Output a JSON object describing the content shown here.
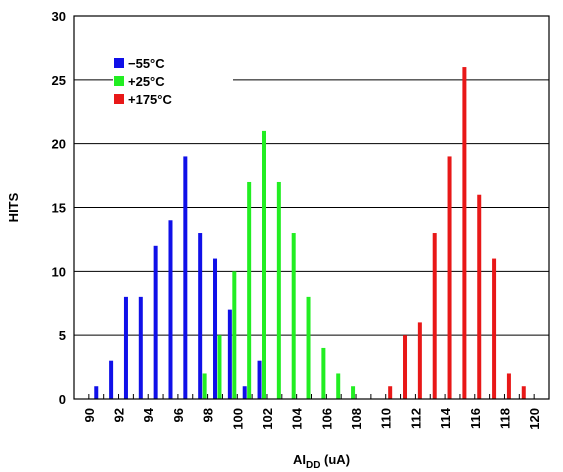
{
  "chart_data": {
    "type": "bar",
    "title": "",
    "ylabel": "HITS",
    "xlabel_main": "AI",
    "xlabel_sub": "DD",
    "xlabel_unit": " (uA)",
    "xlim": [
      89,
      121
    ],
    "ylim": [
      0,
      30
    ],
    "grid": true,
    "legend_position": "top-left",
    "x_ticks": [
      "90",
      "92",
      "94",
      "96",
      "98",
      "100",
      "102",
      "104",
      "106",
      "108",
      "110",
      "112",
      "114",
      "116",
      "118",
      "120"
    ],
    "y_ticks": [
      "0",
      "5",
      "10",
      "15",
      "20",
      "25",
      "30"
    ],
    "series": [
      {
        "name": "−55°C",
        "color": "#1010e8",
        "points": [
          {
            "x": 90.5,
            "y": 1
          },
          {
            "x": 91.5,
            "y": 3
          },
          {
            "x": 92.5,
            "y": 8
          },
          {
            "x": 93.5,
            "y": 8
          },
          {
            "x": 94.5,
            "y": 12
          },
          {
            "x": 95.5,
            "y": 14
          },
          {
            "x": 96.5,
            "y": 19
          },
          {
            "x": 97.5,
            "y": 13
          },
          {
            "x": 98.5,
            "y": 11
          },
          {
            "x": 99.5,
            "y": 7
          },
          {
            "x": 100.5,
            "y": 1
          },
          {
            "x": 101.5,
            "y": 3
          }
        ]
      },
      {
        "name": "+25°C",
        "color": "#22ee22",
        "points": [
          {
            "x": 97.8,
            "y": 2
          },
          {
            "x": 98.8,
            "y": 5
          },
          {
            "x": 99.8,
            "y": 10
          },
          {
            "x": 100.8,
            "y": 17
          },
          {
            "x": 101.8,
            "y": 21
          },
          {
            "x": 102.8,
            "y": 17
          },
          {
            "x": 103.8,
            "y": 13
          },
          {
            "x": 104.8,
            "y": 8
          },
          {
            "x": 105.8,
            "y": 4
          },
          {
            "x": 106.8,
            "y": 2
          },
          {
            "x": 107.8,
            "y": 1
          }
        ]
      },
      {
        "name": "+175°C",
        "color": "#e81818",
        "points": [
          {
            "x": 110.3,
            "y": 1
          },
          {
            "x": 111.3,
            "y": 5
          },
          {
            "x": 112.3,
            "y": 6
          },
          {
            "x": 113.3,
            "y": 13
          },
          {
            "x": 114.3,
            "y": 19
          },
          {
            "x": 115.3,
            "y": 26
          },
          {
            "x": 116.3,
            "y": 16
          },
          {
            "x": 117.3,
            "y": 11
          },
          {
            "x": 118.3,
            "y": 2
          },
          {
            "x": 119.3,
            "y": 1
          }
        ]
      }
    ]
  }
}
